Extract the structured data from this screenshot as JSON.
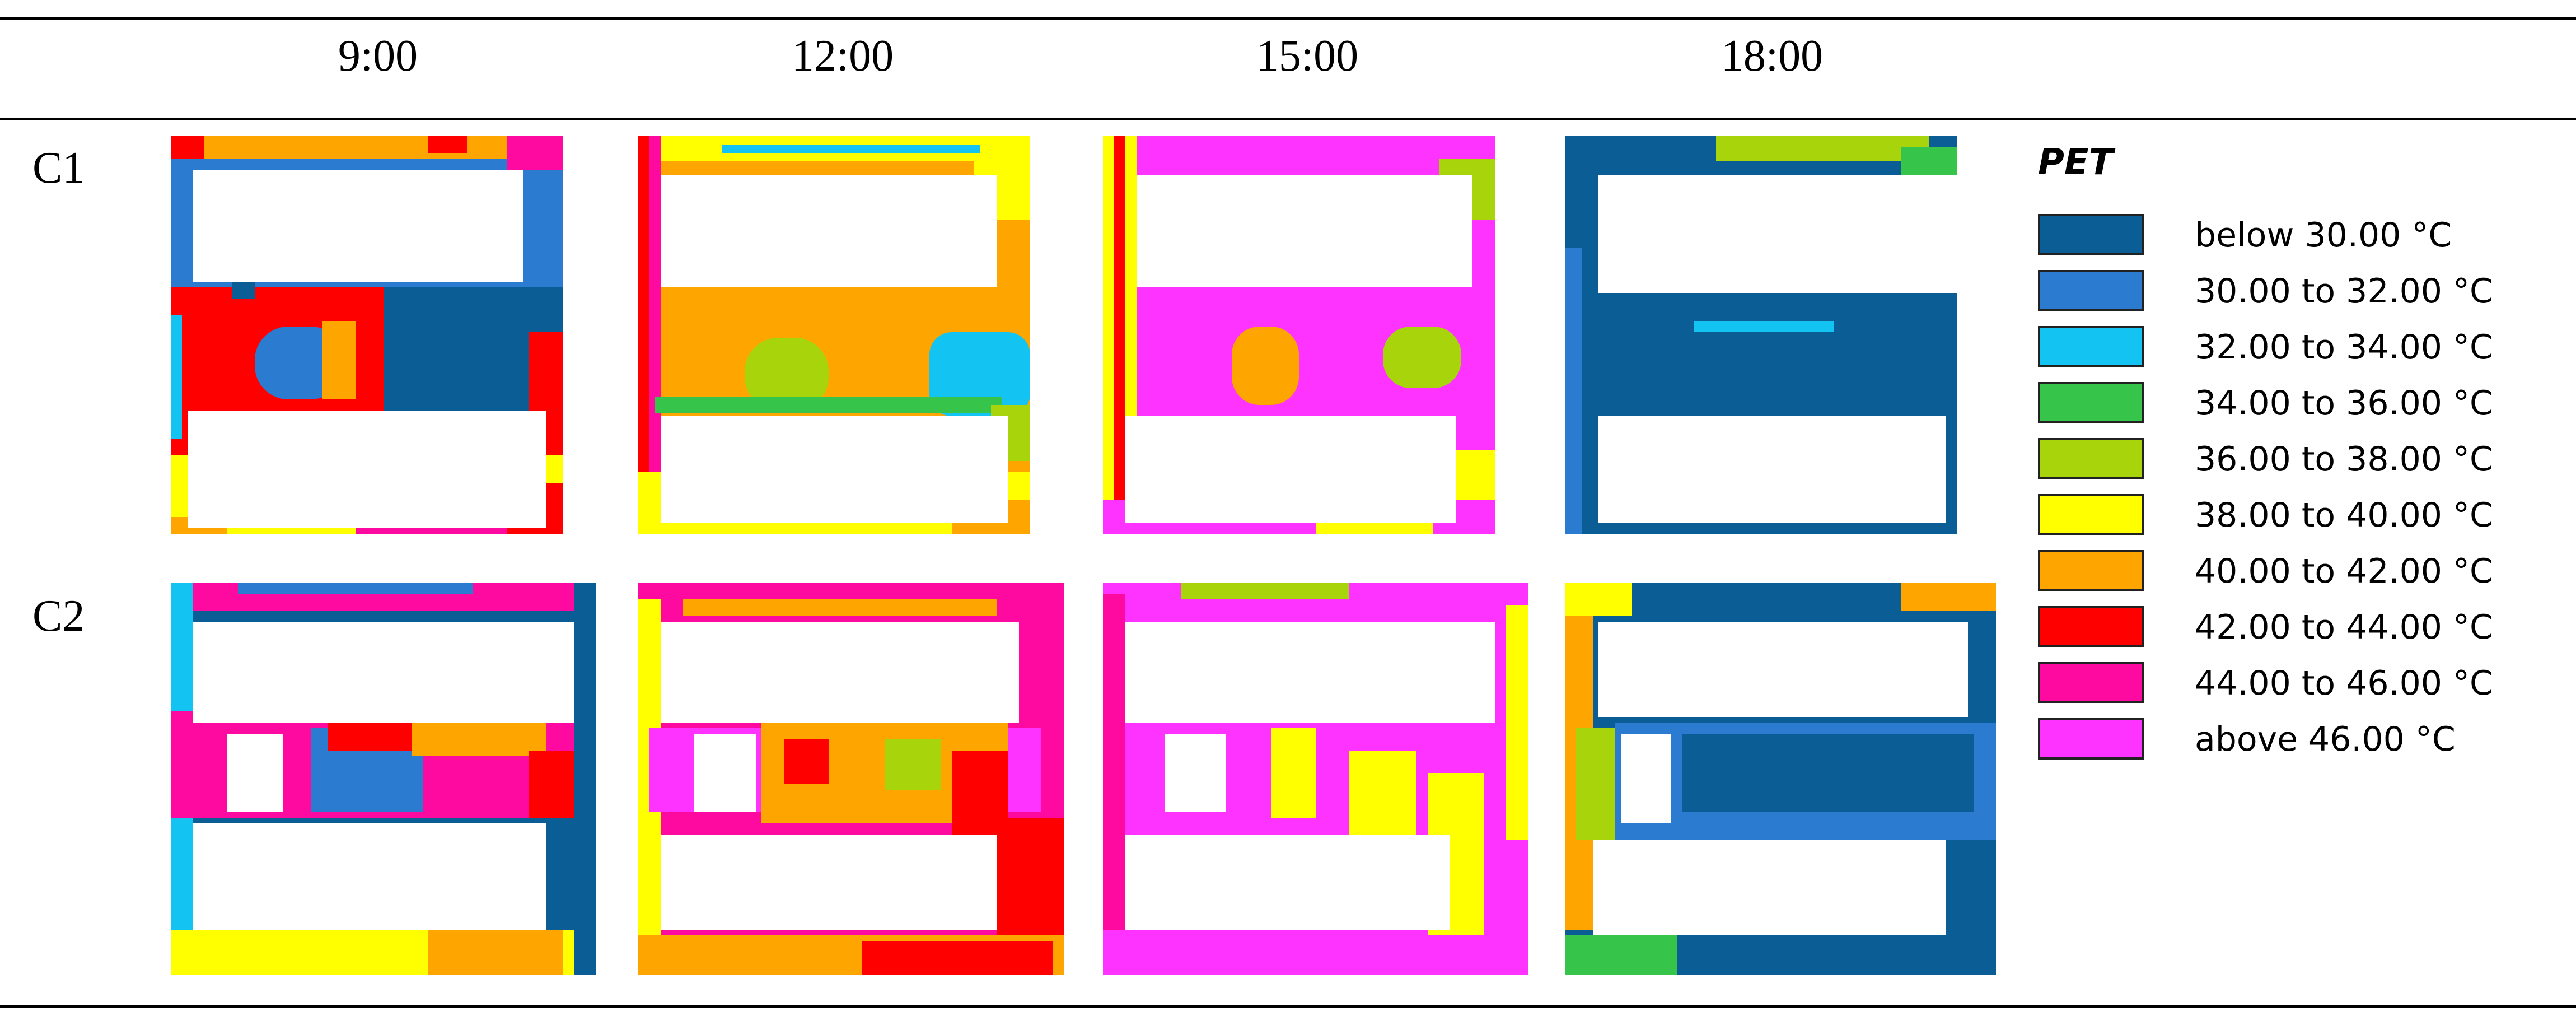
{
  "columns": [
    "9:00",
    "12:00",
    "15:00",
    "18:00"
  ],
  "rows": [
    "C1",
    "C2"
  ],
  "legend": {
    "title": "PET",
    "items": [
      {
        "label": "below 30.00 °C",
        "color": "#0a5d95"
      },
      {
        "label": "30.00 to 32.00 °C",
        "color": "#2b7bd1"
      },
      {
        "label": "32.00 to 34.00 °C",
        "color": "#13c4f2"
      },
      {
        "label": "34.00 to 36.00 °C",
        "color": "#36c44a"
      },
      {
        "label": "36.00 to 38.00 °C",
        "color": "#a8d40c"
      },
      {
        "label": "38.00 to 40.00 °C",
        "color": "#ffff00"
      },
      {
        "label": "40.00 to 42.00 °C",
        "color": "#ffa500"
      },
      {
        "label": "42.00 to 44.00 °C",
        "color": "#ff0000"
      },
      {
        "label": "44.00 to 46.00 °C",
        "color": "#ff0aa0"
      },
      {
        "label": "above 46.00 °C",
        "color": "#ff33ff"
      }
    ]
  },
  "maps": [
    {
      "row": "C1",
      "time": "9:00",
      "dominant_class": "below 30.00 °C",
      "secondary_class": "42.00 to 44.00 °C",
      "edge_class": "40.00 to 42.00 °C"
    },
    {
      "row": "C1",
      "time": "12:00",
      "dominant_class": "40.00 to 42.00 °C",
      "secondary_class": "32.00 to 34.00 °C",
      "edge_class": "38.00 to 40.00 °C"
    },
    {
      "row": "C1",
      "time": "15:00",
      "dominant_class": "above 46.00 °C",
      "secondary_class": "40.00 to 42.00 °C",
      "edge_class": "above 46.00 °C"
    },
    {
      "row": "C1",
      "time": "18:00",
      "dominant_class": "below 30.00 °C",
      "secondary_class": "32.00 to 34.00 °C",
      "edge_class": "36.00 to 38.00 °C"
    },
    {
      "row": "C2",
      "time": "9:00",
      "dominant_class": "30.00 to 32.00 °C",
      "secondary_class": "42.00 to 44.00 °C",
      "edge_class": "38.00 to 40.00 °C"
    },
    {
      "row": "C2",
      "time": "12:00",
      "dominant_class": "44.00 to 46.00 °C",
      "secondary_class": "42.00 to 44.00 °C",
      "edge_class": "40.00 to 42.00 °C"
    },
    {
      "row": "C2",
      "time": "15:00",
      "dominant_class": "above 46.00 °C",
      "secondary_class": "38.00 to 40.00 °C",
      "edge_class": "above 46.00 °C"
    },
    {
      "row": "C2",
      "time": "18:00",
      "dominant_class": "below 30.00 °C",
      "secondary_class": "40.00 to 42.00 °C",
      "edge_class": "below 30.00 °C"
    }
  ]
}
